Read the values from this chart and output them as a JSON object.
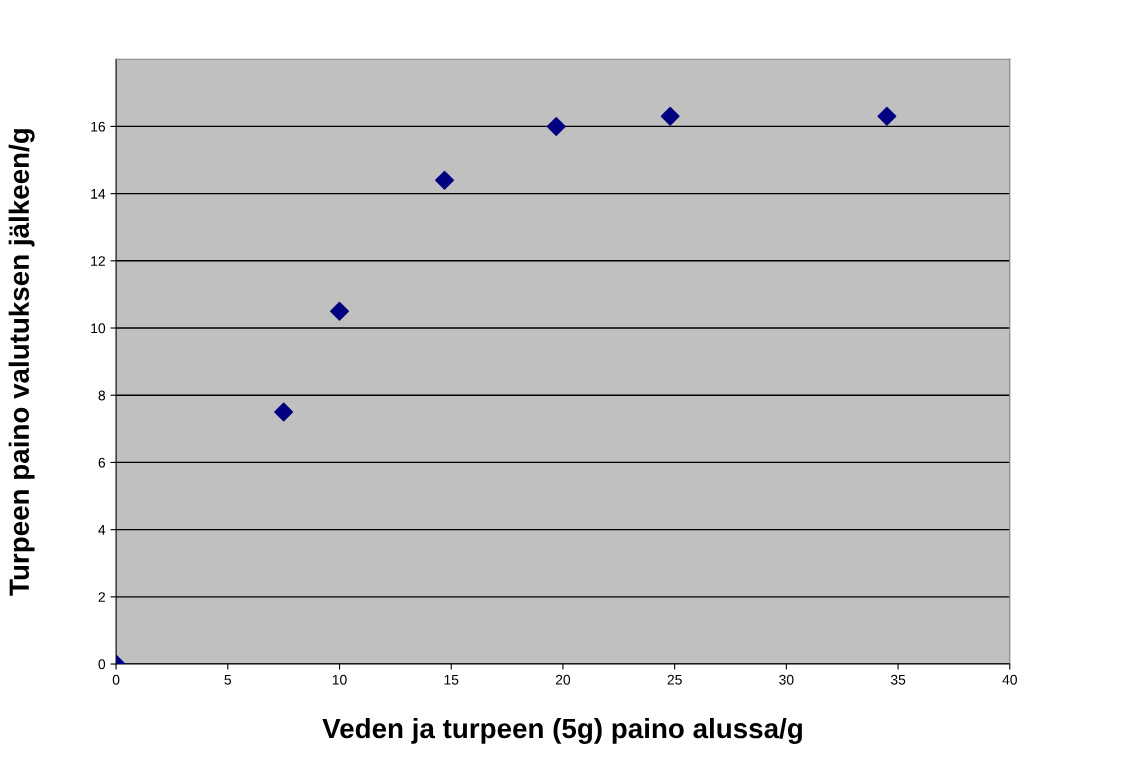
{
  "chart_data": {
    "type": "scatter",
    "xlabel": "Veden ja turpeen (5g) paino alussa/g",
    "ylabel": "Turpeen paino valutuksen jälkeen/g",
    "x": [
      0,
      7.5,
      10,
      14.7,
      19.7,
      24.8,
      34.5
    ],
    "series": [
      {
        "color": "#000080",
        "values": [
          0,
          7.5,
          10.5,
          14.4,
          16.0,
          16.3,
          16.3
        ]
      }
    ],
    "xlim": [
      0,
      40
    ],
    "xticks": [
      0,
      5,
      10,
      15,
      20,
      25,
      30,
      35,
      40
    ],
    "ylim": [
      0,
      18
    ],
    "yticks": [
      0,
      2,
      4,
      6,
      8,
      10,
      12,
      14,
      16
    ],
    "grid": "y",
    "marker": "diamond"
  }
}
